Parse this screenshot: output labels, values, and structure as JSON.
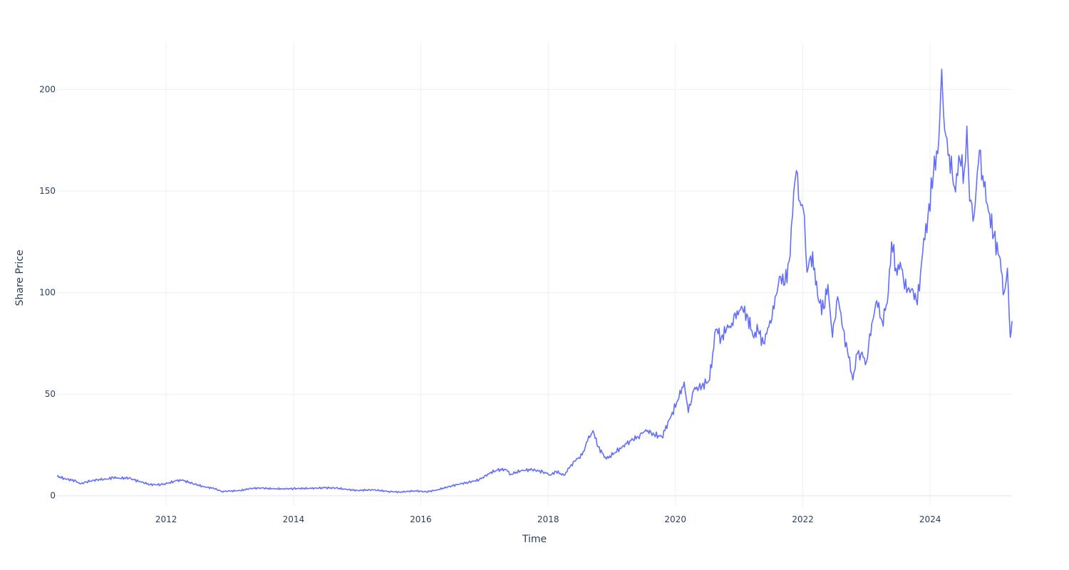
{
  "chart_data": {
    "type": "line",
    "title": "",
    "xlabel": "Time",
    "ylabel": "Share Price",
    "x_range": [
      "2010-04-15",
      "2025-04-15"
    ],
    "ylim": [
      -5,
      223
    ],
    "grid": true,
    "legend": "none",
    "colors": {
      "line": "#636efa",
      "grid": "#ebf0f8",
      "text": "#2a3f5f",
      "background": "#ffffff"
    },
    "x_ticks": [
      {
        "value": "2012-01-01",
        "label": "2012"
      },
      {
        "value": "2014-01-01",
        "label": "2014"
      },
      {
        "value": "2016-01-01",
        "label": "2016"
      },
      {
        "value": "2018-01-01",
        "label": "2018"
      },
      {
        "value": "2020-01-01",
        "label": "2020"
      },
      {
        "value": "2022-01-01",
        "label": "2022"
      },
      {
        "value": "2024-01-01",
        "label": "2024"
      }
    ],
    "y_ticks": [
      {
        "value": 0,
        "label": "0"
      },
      {
        "value": 50,
        "label": "50"
      },
      {
        "value": 100,
        "label": "100"
      },
      {
        "value": 150,
        "label": "150"
      },
      {
        "value": 200,
        "label": "200"
      }
    ],
    "series": [
      {
        "points": [
          [
            "2010-04-15",
            9.6
          ],
          [
            "2010-06-01",
            8.3
          ],
          [
            "2010-08-01",
            7.3
          ],
          [
            "2010-08-25",
            5.8
          ],
          [
            "2010-10-01",
            6.8
          ],
          [
            "2010-12-01",
            7.9
          ],
          [
            "2011-02-01",
            8.2
          ],
          [
            "2011-03-01",
            9.0
          ],
          [
            "2011-04-01",
            8.6
          ],
          [
            "2011-06-01",
            8.7
          ],
          [
            "2011-08-01",
            7.0
          ],
          [
            "2011-10-01",
            5.5
          ],
          [
            "2011-12-01",
            5.4
          ],
          [
            "2012-01-15",
            6.2
          ],
          [
            "2012-03-01",
            7.4
          ],
          [
            "2012-04-01",
            7.7
          ],
          [
            "2012-06-01",
            6.0
          ],
          [
            "2012-08-01",
            4.5
          ],
          [
            "2012-10-01",
            3.6
          ],
          [
            "2012-11-15",
            2.1
          ],
          [
            "2013-01-01",
            2.3
          ],
          [
            "2013-03-01",
            2.5
          ],
          [
            "2013-05-01",
            3.6
          ],
          [
            "2013-07-01",
            3.8
          ],
          [
            "2013-09-01",
            3.4
          ],
          [
            "2013-11-01",
            3.4
          ],
          [
            "2014-01-01",
            3.5
          ],
          [
            "2014-04-01",
            3.6
          ],
          [
            "2014-07-01",
            3.9
          ],
          [
            "2014-09-01",
            3.8
          ],
          [
            "2014-11-01",
            3.1
          ],
          [
            "2015-01-01",
            2.6
          ],
          [
            "2015-04-01",
            2.9
          ],
          [
            "2015-07-01",
            2.1
          ],
          [
            "2015-09-01",
            1.8
          ],
          [
            "2015-12-01",
            2.4
          ],
          [
            "2016-02-01",
            1.9
          ],
          [
            "2016-04-01",
            2.8
          ],
          [
            "2016-06-01",
            4.2
          ],
          [
            "2016-08-01",
            5.6
          ],
          [
            "2016-10-01",
            6.6
          ],
          [
            "2016-12-01",
            7.8
          ],
          [
            "2017-02-01",
            11.2
          ],
          [
            "2017-03-15",
            12.6
          ],
          [
            "2017-05-01",
            13.0
          ],
          [
            "2017-06-01",
            10.6
          ],
          [
            "2017-08-01",
            12.4
          ],
          [
            "2017-10-01",
            12.8
          ],
          [
            "2017-12-01",
            11.8
          ],
          [
            "2018-01-15",
            10.2
          ],
          [
            "2018-02-15",
            12.0
          ],
          [
            "2018-04-01",
            10.0
          ],
          [
            "2018-05-01",
            13.5
          ],
          [
            "2018-06-01",
            17.0
          ],
          [
            "2018-07-15",
            20.0
          ],
          [
            "2018-08-15",
            27.0
          ],
          [
            "2018-09-15",
            32.0
          ],
          [
            "2018-10-15",
            24.0
          ],
          [
            "2018-12-01",
            18.0
          ],
          [
            "2019-01-15",
            21.0
          ],
          [
            "2019-03-01",
            24.0
          ],
          [
            "2019-04-15",
            27.0
          ],
          [
            "2019-06-01",
            29.0
          ],
          [
            "2019-07-15",
            32.5
          ],
          [
            "2019-09-01",
            30.0
          ],
          [
            "2019-10-15",
            29.0
          ],
          [
            "2019-12-01",
            38.0
          ],
          [
            "2020-01-15",
            47.0
          ],
          [
            "2020-02-20",
            56.0
          ],
          [
            "2020-03-15",
            41.0
          ],
          [
            "2020-04-15",
            52.0
          ],
          [
            "2020-06-01",
            54.0
          ],
          [
            "2020-07-15",
            57.0
          ],
          [
            "2020-08-20",
            82.0
          ],
          [
            "2020-09-20",
            78.0
          ],
          [
            "2020-10-20",
            82.0
          ],
          [
            "2020-11-20",
            85.0
          ],
          [
            "2020-12-20",
            91.0
          ],
          [
            "2021-01-20",
            92.0
          ],
          [
            "2021-02-20",
            88.0
          ],
          [
            "2021-03-20",
            79.0
          ],
          [
            "2021-04-20",
            81.0
          ],
          [
            "2021-05-20",
            75.0
          ],
          [
            "2021-06-20",
            83.0
          ],
          [
            "2021-07-20",
            92.0
          ],
          [
            "2021-08-20",
            108.0
          ],
          [
            "2021-09-20",
            104.0
          ],
          [
            "2021-10-20",
            118.0
          ],
          [
            "2021-11-10",
            150.0
          ],
          [
            "2021-11-25",
            160.0
          ],
          [
            "2021-12-15",
            145.0
          ],
          [
            "2022-01-10",
            138.0
          ],
          [
            "2022-01-25",
            110.0
          ],
          [
            "2022-02-15",
            118.0
          ],
          [
            "2022-03-10",
            112.0
          ],
          [
            "2022-04-01",
            96.0
          ],
          [
            "2022-05-01",
            92.0
          ],
          [
            "2022-05-25",
            104.0
          ],
          [
            "2022-06-20",
            78.0
          ],
          [
            "2022-07-20",
            98.0
          ],
          [
            "2022-08-20",
            82.0
          ],
          [
            "2022-09-20",
            68.0
          ],
          [
            "2022-10-15",
            57.0
          ],
          [
            "2022-11-10",
            70.0
          ],
          [
            "2022-12-01",
            70.0
          ],
          [
            "2023-01-01",
            66.0
          ],
          [
            "2023-02-01",
            85.0
          ],
          [
            "2023-03-01",
            96.0
          ],
          [
            "2023-04-01",
            86.0
          ],
          [
            "2023-05-01",
            95.0
          ],
          [
            "2023-05-25",
            125.0
          ],
          [
            "2023-06-20",
            112.0
          ],
          [
            "2023-07-20",
            112.0
          ],
          [
            "2023-08-20",
            100.0
          ],
          [
            "2023-09-20",
            102.0
          ],
          [
            "2023-10-20",
            94.0
          ],
          [
            "2023-11-20",
            120.0
          ],
          [
            "2023-12-20",
            138.0
          ],
          [
            "2024-01-20",
            158.0
          ],
          [
            "2024-02-20",
            175.0
          ],
          [
            "2024-03-08",
            210.0
          ],
          [
            "2024-03-25",
            180.0
          ],
          [
            "2024-04-20",
            168.0
          ],
          [
            "2024-05-20",
            152.0
          ],
          [
            "2024-06-20",
            165.0
          ],
          [
            "2024-07-15",
            160.0
          ],
          [
            "2024-07-30",
            182.0
          ],
          [
            "2024-08-15",
            145.0
          ],
          [
            "2024-09-10",
            138.0
          ],
          [
            "2024-10-10",
            170.0
          ],
          [
            "2024-11-05",
            152.0
          ],
          [
            "2024-12-01",
            140.0
          ],
          [
            "2025-01-01",
            128.0
          ],
          [
            "2025-02-01",
            118.0
          ],
          [
            "2025-03-01",
            100.0
          ],
          [
            "2025-03-20",
            112.0
          ],
          [
            "2025-04-05",
            78.0
          ],
          [
            "2025-04-15",
            86.0
          ]
        ]
      }
    ]
  }
}
